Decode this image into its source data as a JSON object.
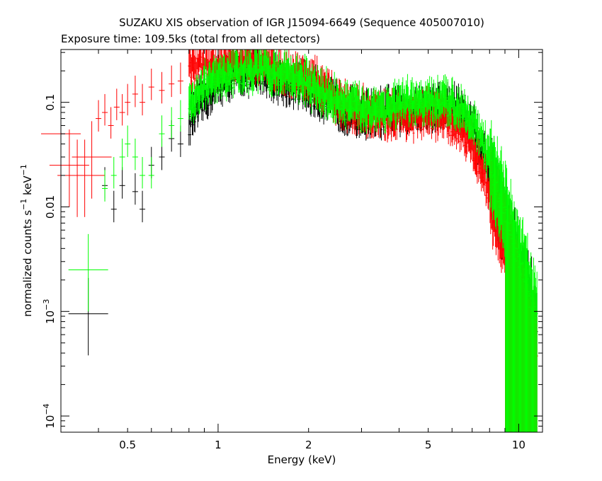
{
  "chart_data": {
    "type": "scatter",
    "title": "SUZAKU XIS observation of IGR J15094-6649 (Sequence 405007010)",
    "subtitle": "Exposure time: 109.5ks (total from all detectors)",
    "xlabel": "Energy (keV)",
    "ylabel_parts": {
      "main": "normalized counts s",
      "exp1": "−1",
      "mid": " keV",
      "exp2": "−1"
    },
    "xscale": "log",
    "yscale": "log",
    "xlim": [
      0.3,
      12
    ],
    "ylim": [
      7e-05,
      0.32
    ],
    "x_ticks": [
      {
        "value": 0.5,
        "label": "0.5"
      },
      {
        "value": 1,
        "label": "1"
      },
      {
        "value": 2,
        "label": "2"
      },
      {
        "value": 5,
        "label": "5"
      },
      {
        "value": 10,
        "label": "10"
      }
    ],
    "y_ticks": [
      {
        "value": 0.0001,
        "base": "10",
        "exp": "−4",
        "label": ""
      },
      {
        "value": 0.001,
        "base": "10",
        "exp": "−3",
        "label": ""
      },
      {
        "value": 0.01,
        "base": "",
        "exp": "",
        "label": "0.01"
      },
      {
        "value": 0.1,
        "base": "",
        "exp": "",
        "label": "0.1"
      }
    ],
    "grid": false,
    "series": [
      {
        "color": "#000000",
        "points": [
          [
            0.37,
            0.00095
          ],
          [
            0.42,
            0.016
          ],
          [
            0.45,
            0.0095
          ],
          [
            0.48,
            0.016
          ],
          [
            0.53,
            0.014
          ],
          [
            0.56,
            0.0095
          ],
          [
            0.6,
            0.025
          ],
          [
            0.65,
            0.03
          ],
          [
            0.7,
            0.045
          ],
          [
            0.75,
            0.04
          ],
          [
            0.8,
            0.06
          ],
          [
            0.9,
            0.1
          ],
          [
            1.0,
            0.14
          ],
          [
            1.1,
            0.16
          ],
          [
            1.2,
            0.18
          ],
          [
            1.3,
            0.17
          ],
          [
            1.4,
            0.19
          ],
          [
            1.5,
            0.16
          ],
          [
            1.7,
            0.14
          ],
          [
            1.9,
            0.13
          ],
          [
            2.1,
            0.11
          ],
          [
            2.4,
            0.09
          ],
          [
            2.7,
            0.075
          ],
          [
            3.0,
            0.07
          ],
          [
            3.5,
            0.07
          ],
          [
            4.0,
            0.075
          ],
          [
            4.5,
            0.08
          ],
          [
            5.0,
            0.08
          ],
          [
            5.5,
            0.08
          ],
          [
            6.0,
            0.085
          ],
          [
            6.5,
            0.07
          ],
          [
            7.0,
            0.055
          ],
          [
            7.5,
            0.035
          ],
          [
            8.0,
            0.02
          ],
          [
            8.5,
            0.012
          ],
          [
            9.0,
            0.007
          ],
          [
            9.5,
            0.004
          ],
          [
            10.0,
            0.0025
          ],
          [
            10.5,
            0.0015
          ],
          [
            11.0,
            0.001
          ],
          [
            11.5,
            0.0006
          ]
        ]
      },
      {
        "color": "#ff0000",
        "points": [
          [
            0.3,
            0.05
          ],
          [
            0.32,
            0.025
          ],
          [
            0.34,
            0.02
          ],
          [
            0.36,
            0.02
          ],
          [
            0.38,
            0.03
          ],
          [
            0.4,
            0.07
          ],
          [
            0.42,
            0.08
          ],
          [
            0.44,
            0.06
          ],
          [
            0.46,
            0.09
          ],
          [
            0.48,
            0.08
          ],
          [
            0.5,
            0.1
          ],
          [
            0.53,
            0.12
          ],
          [
            0.56,
            0.1
          ],
          [
            0.6,
            0.14
          ],
          [
            0.65,
            0.13
          ],
          [
            0.7,
            0.15
          ],
          [
            0.75,
            0.16
          ],
          [
            0.8,
            0.2
          ],
          [
            0.9,
            0.22
          ],
          [
            1.0,
            0.2
          ],
          [
            1.1,
            0.23
          ],
          [
            1.2,
            0.22
          ],
          [
            1.3,
            0.24
          ],
          [
            1.4,
            0.22
          ],
          [
            1.5,
            0.2
          ],
          [
            1.7,
            0.18
          ],
          [
            1.9,
            0.16
          ],
          [
            2.1,
            0.14
          ],
          [
            2.4,
            0.1
          ],
          [
            2.7,
            0.08
          ],
          [
            3.0,
            0.075
          ],
          [
            3.5,
            0.065
          ],
          [
            4.0,
            0.07
          ],
          [
            4.5,
            0.065
          ],
          [
            5.0,
            0.07
          ],
          [
            5.5,
            0.065
          ],
          [
            6.0,
            0.06
          ],
          [
            6.5,
            0.05
          ],
          [
            7.0,
            0.035
          ],
          [
            7.5,
            0.022
          ],
          [
            8.0,
            0.013
          ],
          [
            8.5,
            0.008
          ],
          [
            9.0,
            0.005
          ],
          [
            9.5,
            0.003
          ],
          [
            10.0,
            0.0018
          ],
          [
            10.5,
            0.001
          ],
          [
            11.0,
            0.0006
          ],
          [
            11.5,
            0.0004
          ]
        ]
      },
      {
        "color": "#00ff00",
        "points": [
          [
            0.37,
            0.0025
          ],
          [
            0.42,
            0.015
          ],
          [
            0.45,
            0.02
          ],
          [
            0.48,
            0.03
          ],
          [
            0.5,
            0.04
          ],
          [
            0.53,
            0.03
          ],
          [
            0.56,
            0.02
          ],
          [
            0.6,
            0.02
          ],
          [
            0.65,
            0.05
          ],
          [
            0.7,
            0.06
          ],
          [
            0.75,
            0.07
          ],
          [
            0.8,
            0.09
          ],
          [
            0.9,
            0.13
          ],
          [
            1.0,
            0.15
          ],
          [
            1.1,
            0.17
          ],
          [
            1.2,
            0.19
          ],
          [
            1.3,
            0.18
          ],
          [
            1.4,
            0.2
          ],
          [
            1.5,
            0.18
          ],
          [
            1.7,
            0.17
          ],
          [
            1.9,
            0.15
          ],
          [
            2.1,
            0.12
          ],
          [
            2.4,
            0.1
          ],
          [
            2.7,
            0.085
          ],
          [
            3.0,
            0.08
          ],
          [
            3.5,
            0.08
          ],
          [
            4.0,
            0.085
          ],
          [
            4.5,
            0.09
          ],
          [
            5.0,
            0.09
          ],
          [
            5.5,
            0.09
          ],
          [
            6.0,
            0.09
          ],
          [
            6.5,
            0.08
          ],
          [
            7.0,
            0.065
          ],
          [
            7.5,
            0.04
          ],
          [
            8.0,
            0.025
          ],
          [
            8.5,
            0.015
          ],
          [
            9.0,
            0.009
          ],
          [
            9.5,
            0.005
          ],
          [
            10.0,
            0.003
          ],
          [
            10.5,
            0.002
          ],
          [
            11.0,
            0.0012
          ],
          [
            11.5,
            0.0008
          ]
        ]
      }
    ]
  }
}
